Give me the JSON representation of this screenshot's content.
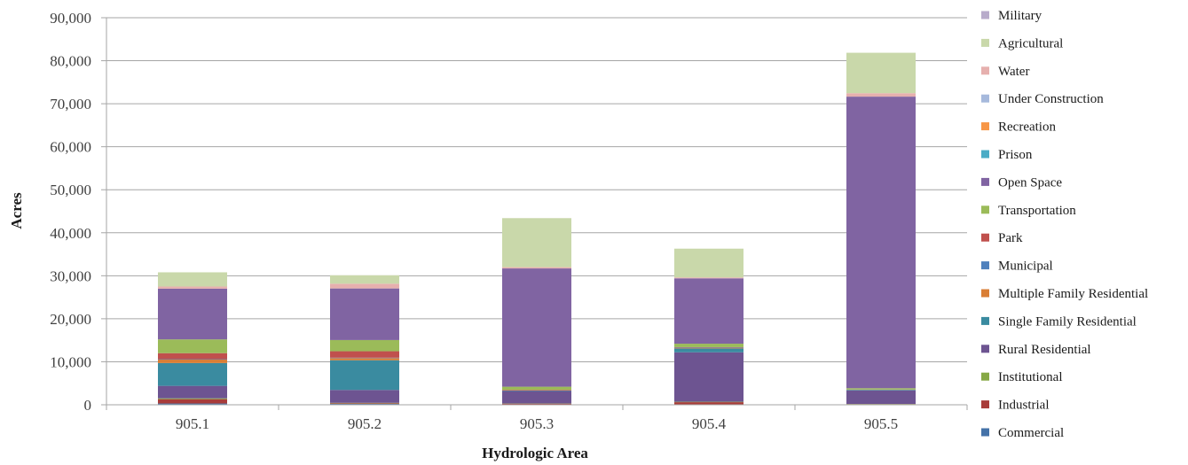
{
  "chart_data": {
    "type": "bar",
    "stacked": true,
    "title": "",
    "xlabel": "Hydrologic Area",
    "ylabel": "Acres",
    "ylim": [
      0,
      90000
    ],
    "yticks": [
      0,
      10000,
      20000,
      30000,
      40000,
      50000,
      60000,
      70000,
      80000,
      90000
    ],
    "ytick_labels": [
      "0",
      "10,000",
      "20,000",
      "30,000",
      "40,000",
      "50,000",
      "60,000",
      "70,000",
      "80,000",
      "90,000"
    ],
    "grid": true,
    "legend_position": "right",
    "categories": [
      "905.1",
      "905.2",
      "905.3",
      "905.4",
      "905.5"
    ],
    "series": [
      {
        "name": "Commercial",
        "color": "#4472a8",
        "values": [
          300,
          200,
          100,
          100,
          50
        ]
      },
      {
        "name": "Industrial",
        "color": "#a83c3a",
        "values": [
          1000,
          150,
          150,
          500,
          100
        ]
      },
      {
        "name": "Institutional",
        "color": "#86a845",
        "values": [
          200,
          100,
          50,
          100,
          50
        ]
      },
      {
        "name": "Rural Residential",
        "color": "#6d5491",
        "values": [
          2900,
          3000,
          2900,
          11500,
          3100
        ]
      },
      {
        "name": "Single Family Residential",
        "color": "#3a8ba0",
        "values": [
          5300,
          6900,
          100,
          900,
          100
        ]
      },
      {
        "name": "Multiple Family Residential",
        "color": "#d97e35",
        "values": [
          800,
          500,
          100,
          100,
          50
        ]
      },
      {
        "name": "Municipal",
        "color": "#4f81bd",
        "values": [
          100,
          100,
          50,
          100,
          50
        ]
      },
      {
        "name": "Park",
        "color": "#c0504d",
        "values": [
          1400,
          1500,
          50,
          100,
          50
        ]
      },
      {
        "name": "Transportation",
        "color": "#9bbb59",
        "values": [
          3200,
          2600,
          700,
          800,
          300
        ]
      },
      {
        "name": "Open Space",
        "color": "#8064a2",
        "values": [
          11800,
          12000,
          27500,
          15200,
          67800
        ]
      },
      {
        "name": "Prison",
        "color": "#4bacc6",
        "values": [
          0,
          0,
          0,
          0,
          0
        ]
      },
      {
        "name": "Recreation",
        "color": "#f79646",
        "values": [
          0,
          0,
          0,
          0,
          0
        ]
      },
      {
        "name": "Under Construction",
        "color": "#a6b9dc",
        "values": [
          0,
          0,
          0,
          0,
          0
        ]
      },
      {
        "name": "Water",
        "color": "#e6b0ae",
        "values": [
          500,
          1100,
          300,
          200,
          800
        ]
      },
      {
        "name": "Agricultural",
        "color": "#c9d8aa",
        "values": [
          3300,
          1950,
          11400,
          6700,
          9400
        ]
      },
      {
        "name": "Military",
        "color": "#b8abcb",
        "values": [
          0,
          0,
          0,
          0,
          0
        ]
      }
    ]
  }
}
